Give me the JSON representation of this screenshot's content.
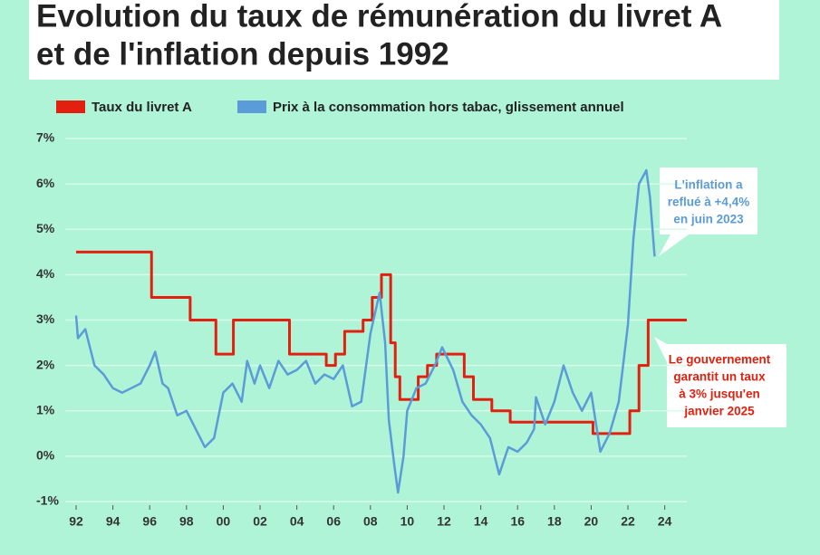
{
  "chart_data": {
    "type": "line",
    "title": [
      "Evolution du taux de rémunération du livret A",
      "et de l'inflation depuis 1992"
    ],
    "xlim": [
      1992,
      2025.2
    ],
    "xticks": [
      {
        "value": 1992,
        "label": "92"
      },
      {
        "value": 1994,
        "label": "94"
      },
      {
        "value": 1996,
        "label": "96"
      },
      {
        "value": 1998,
        "label": "98"
      },
      {
        "value": 2000,
        "label": "00"
      },
      {
        "value": 2002,
        "label": "02"
      },
      {
        "value": 2004,
        "label": "04"
      },
      {
        "value": 2006,
        "label": "06"
      },
      {
        "value": 2008,
        "label": "08"
      },
      {
        "value": 2010,
        "label": "10"
      },
      {
        "value": 2012,
        "label": "12"
      },
      {
        "value": 2014,
        "label": "14"
      },
      {
        "value": 2016,
        "label": "16"
      },
      {
        "value": 2018,
        "label": "18"
      },
      {
        "value": 2020,
        "label": "20"
      },
      {
        "value": 2022,
        "label": "22"
      },
      {
        "value": 2024,
        "label": "24"
      }
    ],
    "ylim": [
      -1,
      7
    ],
    "yticks": [
      {
        "value": -1,
        "label": "-1%"
      },
      {
        "value": 0,
        "label": "0%"
      },
      {
        "value": 1,
        "label": "1%"
      },
      {
        "value": 2,
        "label": "2%"
      },
      {
        "value": 3,
        "label": "3%"
      },
      {
        "value": 4,
        "label": "4%"
      },
      {
        "value": 5,
        "label": "5%"
      },
      {
        "value": 6,
        "label": "6%"
      },
      {
        "value": 7,
        "label": "7%"
      }
    ],
    "grid": true,
    "series": [
      {
        "name": "Taux du livret A",
        "color": "#e3200f",
        "step": true,
        "x": [
          1992,
          1996.1,
          1998.2,
          1999.6,
          2000.55,
          2003.6,
          2005.6,
          2006.1,
          2006.6,
          2007.6,
          2008.1,
          2008.6,
          2009.1,
          2009.35,
          2009.6,
          2010.6,
          2011.1,
          2011.6,
          2013.1,
          2013.6,
          2014.6,
          2015.6,
          2020.1,
          2022.1,
          2022.6,
          2023.1,
          2025.2
        ],
        "values": [
          4.5,
          3.5,
          3,
          2.25,
          3,
          2.25,
          2,
          2.25,
          2.75,
          3,
          3.5,
          4,
          2.5,
          1.75,
          1.25,
          1.75,
          2,
          2.25,
          1.75,
          1.25,
          1,
          0.75,
          0.5,
          1,
          2,
          3,
          3
        ]
      },
      {
        "name": "Prix à la consommation hors tabac, glissement annuel",
        "color": "#5b9bd8",
        "step": false,
        "x": [
          1992,
          1992.1,
          1992.5,
          1993,
          1993.5,
          1994,
          1994.5,
          1995,
          1995.5,
          1996,
          1996.3,
          1996.7,
          1997,
          1997.5,
          1998,
          1998.5,
          1999,
          1999.5,
          2000,
          2000.5,
          2001,
          2001.3,
          2001.7,
          2002,
          2002.5,
          2003,
          2003.5,
          2004,
          2004.5,
          2005,
          2005.5,
          2006,
          2006.5,
          2007,
          2007.5,
          2008,
          2008.5,
          2008.8,
          2009,
          2009.3,
          2009.5,
          2009.8,
          2010,
          2010.5,
          2011,
          2011.5,
          2011.9,
          2012.5,
          2013,
          2013.5,
          2014,
          2014.5,
          2015,
          2015.5,
          2016,
          2016.5,
          2016.9,
          2017,
          2017.5,
          2018,
          2018.5,
          2019,
          2019.5,
          2020,
          2020.5,
          2021,
          2021.5,
          2022,
          2022.3,
          2022.6,
          2023,
          2023.2,
          2023.45
        ],
        "values": [
          3.1,
          2.6,
          2.8,
          2.0,
          1.8,
          1.5,
          1.4,
          1.5,
          1.6,
          2.0,
          2.3,
          1.6,
          1.5,
          0.9,
          1.0,
          0.6,
          0.2,
          0.4,
          1.4,
          1.6,
          1.2,
          2.1,
          1.6,
          2.0,
          1.5,
          2.1,
          1.8,
          1.9,
          2.1,
          1.6,
          1.8,
          1.7,
          2.0,
          1.1,
          1.2,
          2.7,
          3.6,
          2.5,
          0.8,
          -0.2,
          -0.8,
          0.0,
          1.0,
          1.5,
          1.6,
          2.0,
          2.4,
          1.9,
          1.2,
          0.9,
          0.7,
          0.4,
          -0.4,
          0.2,
          0.1,
          0.3,
          0.6,
          1.3,
          0.7,
          1.2,
          2.0,
          1.4,
          1.0,
          1.4,
          0.1,
          0.5,
          1.2,
          2.9,
          4.8,
          6.0,
          6.3,
          5.7,
          4.4
        ]
      }
    ],
    "annotations": [
      {
        "lines": [
          "L'inflation a",
          "reflué à +4,4%",
          "en juin 2023"
        ],
        "color": "#5b9bd8"
      },
      {
        "lines": [
          "Le gouvernement",
          "garantit un taux",
          "à 3% jusqu'en",
          "janvier 2025"
        ],
        "color": "#e3200f"
      }
    ]
  }
}
